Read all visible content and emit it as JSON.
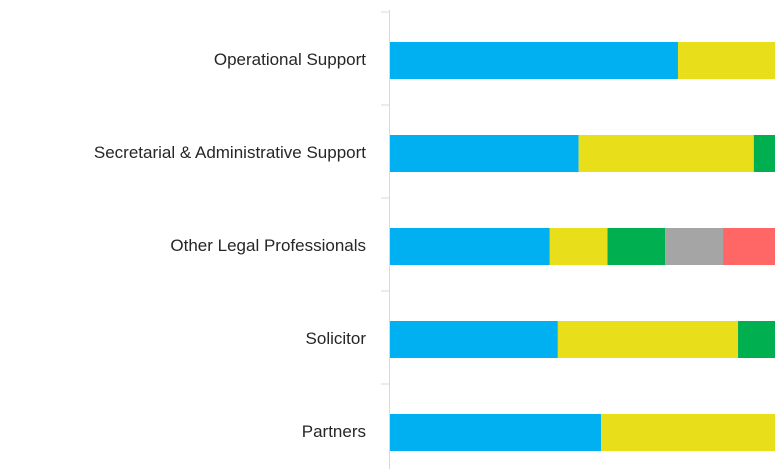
{
  "chart_data": {
    "type": "stacked-bar-horizontal",
    "categories": [
      "Operational Support",
      "Secretarial & Administrative Support",
      "Other Legal Professionals",
      "Solicitor",
      "Partners"
    ],
    "series": [
      {
        "color": "#00b0f0",
        "values": [
          74.8,
          49,
          41.5,
          43.6,
          54.8
        ]
      },
      {
        "color": "#e8df1a",
        "values": [
          25.2,
          45.5,
          15,
          46.8,
          45.2
        ]
      },
      {
        "color": "#00b050",
        "values": [
          null,
          5.5,
          15,
          9.6,
          null
        ]
      },
      {
        "color": "#a5a5a5",
        "values": [
          null,
          null,
          15,
          null,
          null
        ]
      },
      {
        "color": "#ff6666",
        "values": [
          null,
          null,
          13.5,
          null,
          null
        ]
      }
    ],
    "xlim": [
      0,
      100
    ]
  }
}
